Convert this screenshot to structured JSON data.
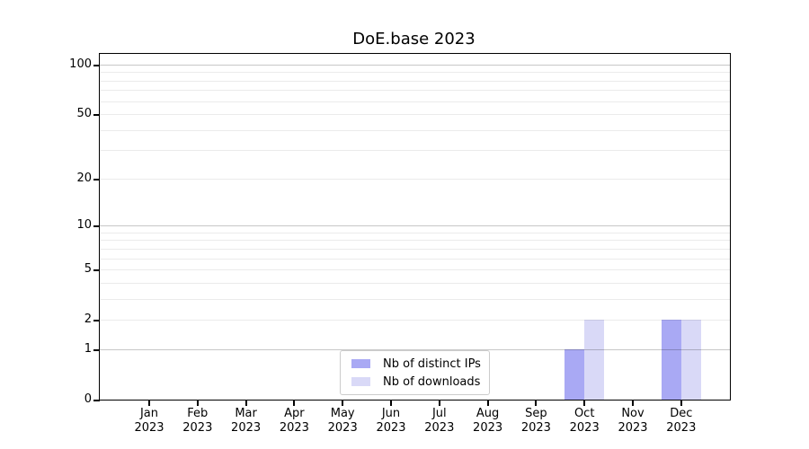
{
  "chart_data": {
    "type": "bar",
    "title": "DoE.base 2023",
    "categories": [
      "Jan",
      "Feb",
      "Mar",
      "Apr",
      "May",
      "Jun",
      "Jul",
      "Aug",
      "Sep",
      "Oct",
      "Nov",
      "Dec"
    ],
    "year_label": "2023",
    "series": [
      {
        "name": "Nb of distinct IPs",
        "color": "#a9a9f4",
        "values": [
          0,
          0,
          0,
          0,
          0,
          0,
          0,
          0,
          0,
          1,
          0,
          2
        ]
      },
      {
        "name": "Nb of downloads",
        "color": "#d9d9f7",
        "values": [
          0,
          0,
          0,
          0,
          0,
          0,
          0,
          0,
          0,
          2,
          0,
          2
        ]
      }
    ],
    "xlabel": "",
    "ylabel": "",
    "y_ticks": [
      0,
      1,
      2,
      5,
      10,
      20,
      50,
      100
    ],
    "major_gridlines": [
      1,
      10,
      100
    ],
    "minor_gridlines": [
      2,
      3,
      4,
      5,
      6,
      7,
      8,
      9,
      20,
      30,
      40,
      50,
      60,
      70,
      80,
      90
    ],
    "ylim": [
      0,
      117
    ],
    "scale": "log(1+x)",
    "grid": true,
    "legend_position": "bottom-center"
  },
  "colors": {
    "bar_distinct_ips": "#a9a9f4",
    "bar_downloads": "#d9d9f7",
    "major_grid": "rgba(0,0,0,0.22)",
    "minor_grid": "rgba(0,0,0,0.08)",
    "axis": "#000000",
    "legend_border": "#cccccc"
  }
}
